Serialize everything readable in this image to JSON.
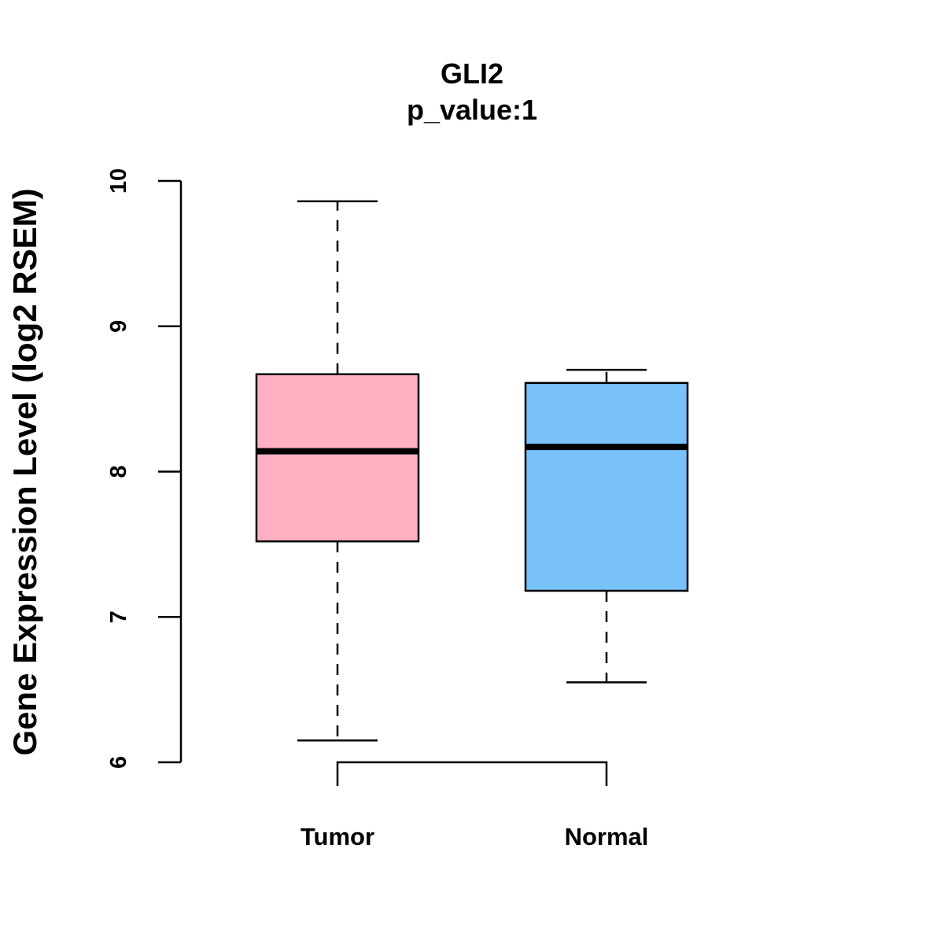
{
  "chart_data": {
    "type": "boxplot",
    "title": "GLI2",
    "subtitle": "p_value:1",
    "xlabel": "",
    "ylabel": "Gene Expression Level (log2 RSEM)",
    "ylim": [
      6,
      10
    ],
    "yticks": [
      "6",
      "7",
      "8",
      "9",
      "10"
    ],
    "grid": false,
    "categories": [
      "Tumor",
      "Normal"
    ],
    "colors": [
      "#FFB0C3",
      "#78C1F9"
    ],
    "series": [
      {
        "category": "Tumor",
        "whisker_low": 6.15,
        "q1": 7.52,
        "median": 8.14,
        "q3": 8.67,
        "whisker_high": 9.86
      },
      {
        "category": "Normal",
        "whisker_low": 6.55,
        "q1": 7.18,
        "median": 8.17,
        "q3": 8.61,
        "whisker_high": 8.7
      }
    ],
    "comparison_bracket": {
      "from": "Tumor",
      "to": "Normal"
    }
  }
}
